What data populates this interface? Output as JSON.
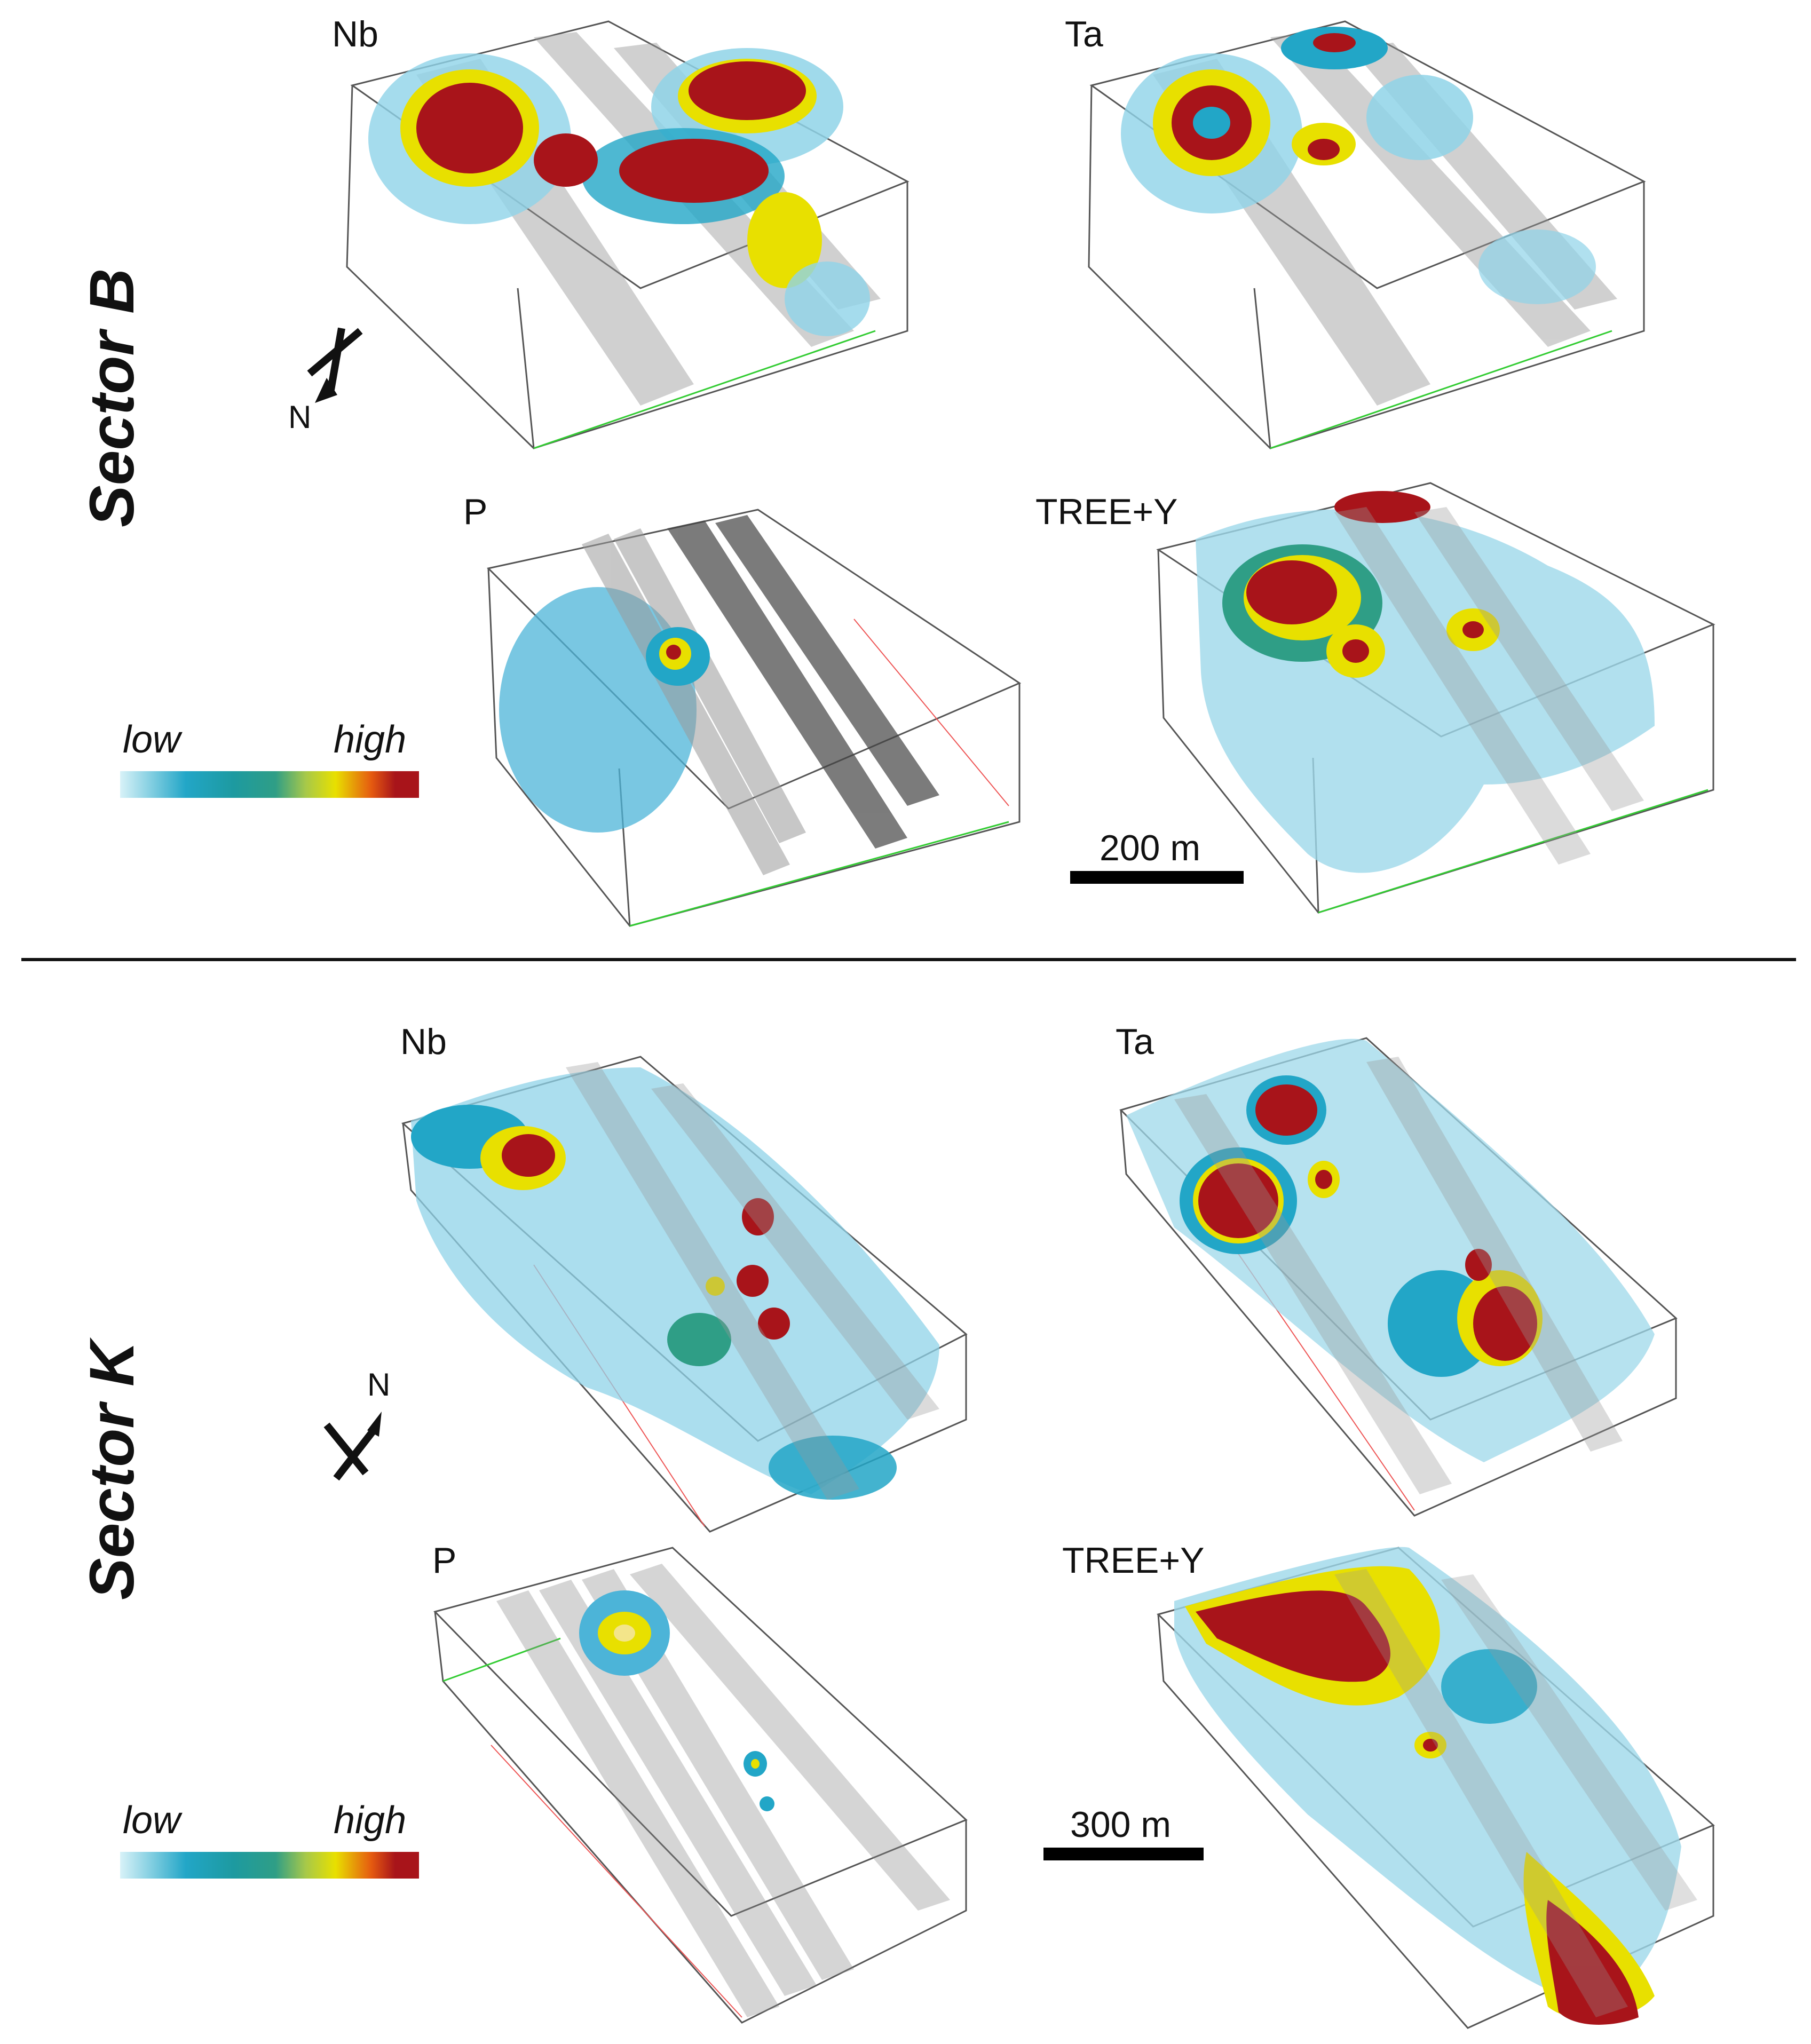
{
  "sectors": [
    {
      "title": "Sector B",
      "north_label": "N",
      "panels": {
        "nb": "Nb",
        "ta": "Ta",
        "p": "P",
        "tree": "TREE+Y"
      },
      "legend": {
        "low": "low",
        "high": "high"
      },
      "scale": {
        "label": "200 m",
        "length_m": 200
      }
    },
    {
      "title": "Sector K",
      "north_label": "N",
      "panels": {
        "nb": "Nb",
        "ta": "Ta",
        "p": "P",
        "tree": "TREE+Y"
      },
      "legend": {
        "low": "low",
        "high": "high"
      },
      "scale": {
        "label": "300 m",
        "length_m": 300
      }
    }
  ],
  "colors": {
    "low": "#9ed8ea",
    "mid_low": "#22a6c7",
    "mid": "#2f9e86",
    "mid_high": "#e8e000",
    "high": "#a8141a",
    "fault_plane": "#9a9a9a",
    "box_edge": "#555555"
  }
}
